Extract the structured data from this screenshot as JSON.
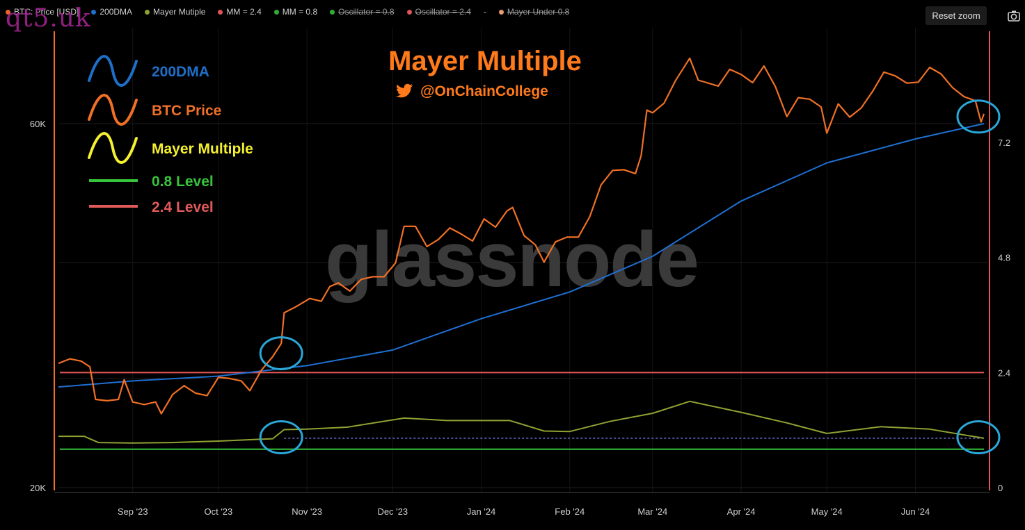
{
  "legend_bar": [
    {
      "label": "BTC: Price [USD]",
      "color": "#e8642a",
      "struck": false
    },
    {
      "label": "200DMA",
      "color": "#1f6fd1",
      "struck": false
    },
    {
      "label": "Mayer Mutiple",
      "color": "#8ea332",
      "struck": false
    },
    {
      "label": "MM = 2.4",
      "color": "#e05555",
      "struck": false
    },
    {
      "label": "MM = 0.8",
      "color": "#2fae36",
      "struck": false
    },
    {
      "label": "Oscillator = 0.8",
      "color": "#2fae36",
      "struck": true
    },
    {
      "label": "Oscillator = 2.4",
      "color": "#e05555",
      "struck": true
    },
    {
      "label": "-",
      "color": "",
      "struck": false
    },
    {
      "label": "Mayer Under 0.8",
      "color": "#e89a70",
      "struck": true
    }
  ],
  "controls": {
    "reset_zoom": "Reset zoom",
    "camera_icon": "camera-icon"
  },
  "watermark_top": "qt5.uk",
  "watermark_center": "glassnode",
  "chart_data": {
    "type": "line",
    "title": "Mayer Multiple",
    "subtitle": "@OnChainCollege",
    "subtitle_icon": "twitter-bird-icon",
    "annotation_legend": [
      {
        "label": "200DMA",
        "color": "#1e6fc8",
        "style": "wave"
      },
      {
        "label": "BTC Price",
        "color": "#f07026",
        "style": "wave"
      },
      {
        "label": "Mayer Multiple",
        "color": "#f5f030",
        "style": "wave"
      },
      {
        "label": "0.8 Level",
        "color": "#36c43a",
        "style": "line"
      },
      {
        "label": "2.4 Level",
        "color": "#e05a5a",
        "style": "line"
      }
    ],
    "x_ticks": [
      "Sep '23",
      "Oct '23",
      "Nov '23",
      "Dec '23",
      "Jan '24",
      "Feb '24",
      "Mar '24",
      "Apr '24",
      "May '24",
      "Jun '24"
    ],
    "left_axis": {
      "scale": "log",
      "ticks": [
        "60K",
        "20K"
      ],
      "range": [
        20000,
        80000
      ]
    },
    "right_axis": {
      "scale": "linear",
      "ticks": [
        "7.2",
        "4.8",
        "2.4",
        "0"
      ],
      "range": [
        0,
        9.6
      ]
    },
    "grid": true,
    "levels": [
      {
        "name": "MM = 2.4",
        "value": 2.4,
        "color": "#e05555"
      },
      {
        "name": "MM = 0.8",
        "value": 0.8,
        "color": "#2fae36"
      }
    ],
    "series": [
      {
        "name": "BTC: Price [USD]",
        "axis": "left",
        "color": "#f07026",
        "points": [
          [
            "2023-08-06",
            29100
          ],
          [
            "2023-08-10",
            29500
          ],
          [
            "2023-08-14",
            29300
          ],
          [
            "2023-08-17",
            28800
          ],
          [
            "2023-08-19",
            26100
          ],
          [
            "2023-08-23",
            26000
          ],
          [
            "2023-08-27",
            26100
          ],
          [
            "2023-08-29",
            27700
          ],
          [
            "2023-09-01",
            25900
          ],
          [
            "2023-09-05",
            25700
          ],
          [
            "2023-09-09",
            25900
          ],
          [
            "2023-09-11",
            25000
          ],
          [
            "2023-09-15",
            26500
          ],
          [
            "2023-09-19",
            27200
          ],
          [
            "2023-09-23",
            26600
          ],
          [
            "2023-09-27",
            26400
          ],
          [
            "2023-10-01",
            27900
          ],
          [
            "2023-10-05",
            27800
          ],
          [
            "2023-10-09",
            27600
          ],
          [
            "2023-10-12",
            26800
          ],
          [
            "2023-10-16",
            28500
          ],
          [
            "2023-10-20",
            29700
          ],
          [
            "2023-10-23",
            30900
          ],
          [
            "2023-10-24",
            33900
          ],
          [
            "2023-10-28",
            34500
          ],
          [
            "2023-11-02",
            35400
          ],
          [
            "2023-11-06",
            35100
          ],
          [
            "2023-11-09",
            36700
          ],
          [
            "2023-11-12",
            37100
          ],
          [
            "2023-11-16",
            36200
          ],
          [
            "2023-11-20",
            37500
          ],
          [
            "2023-11-24",
            37800
          ],
          [
            "2023-11-28",
            37800
          ],
          [
            "2023-12-02",
            39400
          ],
          [
            "2023-12-05",
            44000
          ],
          [
            "2023-12-09",
            44000
          ],
          [
            "2023-12-13",
            41400
          ],
          [
            "2023-12-17",
            42300
          ],
          [
            "2023-12-21",
            43800
          ],
          [
            "2023-12-25",
            43000
          ],
          [
            "2023-12-29",
            42100
          ],
          [
            "2024-01-02",
            45000
          ],
          [
            "2024-01-06",
            43900
          ],
          [
            "2024-01-10",
            46100
          ],
          [
            "2024-01-12",
            46600
          ],
          [
            "2024-01-16",
            42800
          ],
          [
            "2024-01-20",
            41600
          ],
          [
            "2024-01-23",
            39500
          ],
          [
            "2024-01-27",
            42000
          ],
          [
            "2024-01-31",
            42600
          ],
          [
            "2024-02-04",
            42600
          ],
          [
            "2024-02-08",
            45300
          ],
          [
            "2024-02-12",
            49900
          ],
          [
            "2024-02-16",
            52100
          ],
          [
            "2024-02-20",
            52200
          ],
          [
            "2024-02-24",
            51600
          ],
          [
            "2024-02-26",
            54500
          ],
          [
            "2024-02-28",
            62500
          ],
          [
            "2024-03-01",
            62000
          ],
          [
            "2024-03-05",
            63800
          ],
          [
            "2024-03-09",
            68300
          ],
          [
            "2024-03-14",
            73100
          ],
          [
            "2024-03-17",
            68400
          ],
          [
            "2024-03-20",
            67900
          ],
          [
            "2024-03-24",
            67200
          ],
          [
            "2024-03-28",
            70700
          ],
          [
            "2024-04-01",
            69600
          ],
          [
            "2024-04-05",
            67900
          ],
          [
            "2024-04-09",
            71400
          ],
          [
            "2024-04-13",
            67100
          ],
          [
            "2024-04-17",
            61300
          ],
          [
            "2024-04-21",
            64900
          ],
          [
            "2024-04-25",
            64600
          ],
          [
            "2024-04-29",
            63100
          ],
          [
            "2024-05-01",
            58300
          ],
          [
            "2024-05-05",
            63700
          ],
          [
            "2024-05-09",
            61200
          ],
          [
            "2024-05-13",
            62900
          ],
          [
            "2024-05-17",
            66100
          ],
          [
            "2024-05-21",
            70100
          ],
          [
            "2024-05-25",
            69300
          ],
          [
            "2024-05-29",
            67800
          ],
          [
            "2024-06-02",
            68000
          ],
          [
            "2024-06-06",
            71100
          ],
          [
            "2024-06-10",
            69700
          ],
          [
            "2024-06-14",
            66900
          ],
          [
            "2024-06-18",
            65100
          ],
          [
            "2024-06-22",
            64300
          ],
          [
            "2024-06-24",
            60300
          ],
          [
            "2024-06-25",
            61800
          ]
        ]
      },
      {
        "name": "200DMA",
        "axis": "left",
        "color": "#1f6fd1",
        "points": [
          [
            "2023-08-06",
            27100
          ],
          [
            "2023-09-01",
            27600
          ],
          [
            "2023-10-01",
            28000
          ],
          [
            "2023-11-01",
            28900
          ],
          [
            "2023-12-01",
            30300
          ],
          [
            "2024-01-01",
            33300
          ],
          [
            "2024-02-01",
            36100
          ],
          [
            "2024-03-01",
            40200
          ],
          [
            "2024-04-01",
            47500
          ],
          [
            "2024-05-01",
            53300
          ],
          [
            "2024-06-01",
            57300
          ],
          [
            "2024-06-25",
            60000
          ]
        ]
      },
      {
        "name": "Mayer Mutiple",
        "axis": "right",
        "color": "#8ea332",
        "points": [
          [
            "2023-08-06",
            1.07
          ],
          [
            "2023-08-15",
            1.07
          ],
          [
            "2023-08-20",
            0.94
          ],
          [
            "2023-09-01",
            0.93
          ],
          [
            "2023-09-15",
            0.94
          ],
          [
            "2023-10-01",
            0.97
          ],
          [
            "2023-10-20",
            1.02
          ],
          [
            "2023-10-24",
            1.21
          ],
          [
            "2023-11-01",
            1.22
          ],
          [
            "2023-11-15",
            1.26
          ],
          [
            "2023-12-05",
            1.45
          ],
          [
            "2023-12-20",
            1.4
          ],
          [
            "2024-01-11",
            1.4
          ],
          [
            "2024-01-23",
            1.18
          ],
          [
            "2024-02-01",
            1.17
          ],
          [
            "2024-02-15",
            1.38
          ],
          [
            "2024-03-01",
            1.55
          ],
          [
            "2024-03-14",
            1.8
          ],
          [
            "2024-04-01",
            1.57
          ],
          [
            "2024-04-17",
            1.35
          ],
          [
            "2024-05-01",
            1.13
          ],
          [
            "2024-05-20",
            1.27
          ],
          [
            "2024-06-06",
            1.22
          ],
          [
            "2024-06-25",
            1.03
          ]
        ]
      }
    ],
    "mayer_under_dotted": {
      "value": 1.03,
      "color": "#8a8cff"
    },
    "highlights": [
      {
        "date": "2023-10-23",
        "axis": "left",
        "value": 30000
      },
      {
        "date": "2023-10-23",
        "axis": "right",
        "value": 1.05
      },
      {
        "date": "2024-06-25",
        "axis": "left",
        "value": 61300
      },
      {
        "date": "2024-06-25",
        "axis": "right",
        "value": 1.05
      }
    ]
  }
}
